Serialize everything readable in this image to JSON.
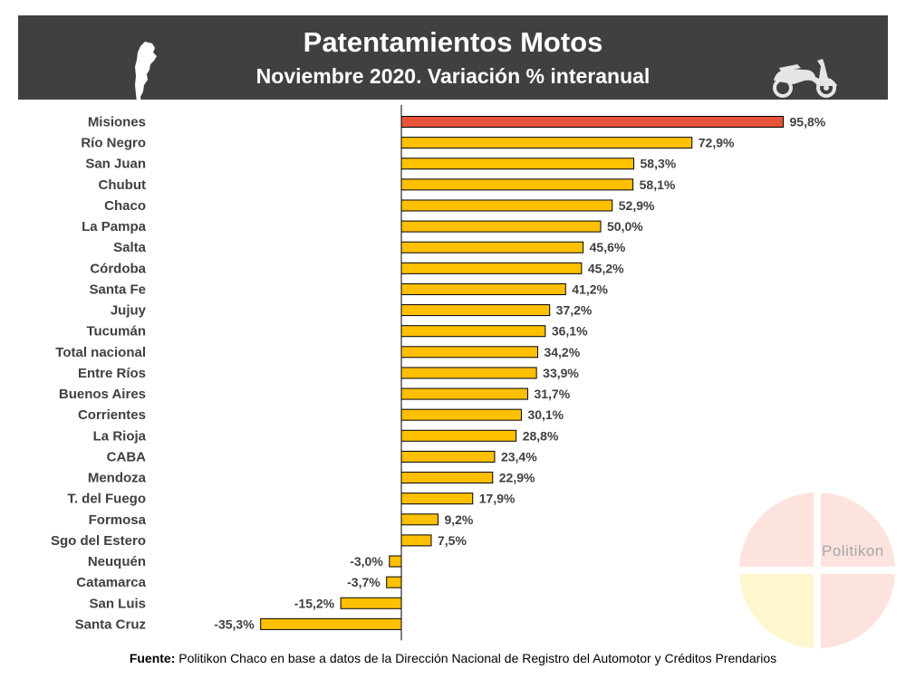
{
  "header": {
    "title": "Patentamientos Motos",
    "subtitle": "Noviembre 2020. Variación % interanual",
    "left_icon": "argentina-map-icon",
    "right_icon": "scooter-icon"
  },
  "chart_data": {
    "type": "bar",
    "orientation": "horizontal",
    "title": "Patentamientos Motos",
    "subtitle": "Noviembre 2020. Variación % interanual",
    "xlabel": "",
    "ylabel": "",
    "xlim": [
      -40,
      100
    ],
    "grid": false,
    "categories": [
      "Misiones",
      "Río Negro",
      "San Juan",
      "Chubut",
      "Chaco",
      "La Pampa",
      "Salta",
      "Córdoba",
      "Santa Fe",
      "Jujuy",
      "Tucumán",
      "Total nacional",
      "Entre Ríos",
      "Buenos Aires",
      "Corrientes",
      "La Rioja",
      "CABA",
      "Mendoza",
      "T. del Fuego",
      "Formosa",
      "Sgo del Estero",
      "Neuquén",
      "Catamarca",
      "San Luis",
      "Santa Cruz"
    ],
    "values": [
      95.8,
      72.9,
      58.3,
      58.1,
      52.9,
      50.0,
      45.6,
      45.2,
      41.2,
      37.2,
      36.1,
      34.2,
      33.9,
      31.7,
      30.1,
      28.8,
      23.4,
      22.9,
      17.9,
      9.2,
      7.5,
      -3.0,
      -3.7,
      -15.2,
      -35.3
    ],
    "labels": [
      "95,8%",
      "72,9%",
      "58,3%",
      "58,1%",
      "52,9%",
      "50,0%",
      "45,6%",
      "45,2%",
      "41,2%",
      "37,2%",
      "36,1%",
      "34,2%",
      "33,9%",
      "31,7%",
      "30,1%",
      "28,8%",
      "23,4%",
      "22,9%",
      "17,9%",
      "9,2%",
      "7,5%",
      "-3,0%",
      "-3,7%",
      "-15,2%",
      "-35,3%"
    ],
    "highlight_category": "Misiones",
    "colors": {
      "default": "#FFC000",
      "highlight": "#E8543A",
      "border": "#000000"
    }
  },
  "source": {
    "label": "Fuente:",
    "text": " Politikon Chaco en base a datos de la Dirección Nacional de Registro del Automotor y Créditos Prendarios"
  },
  "watermark": {
    "text": "Politikon"
  }
}
